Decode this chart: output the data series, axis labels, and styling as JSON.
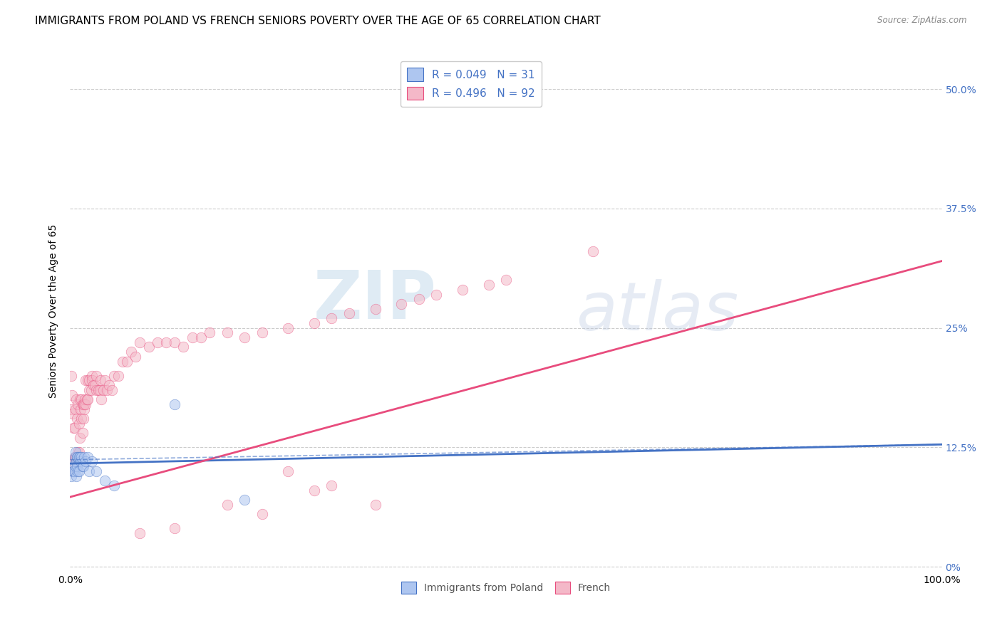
{
  "title": "IMMIGRANTS FROM POLAND VS FRENCH SENIORS POVERTY OVER THE AGE OF 65 CORRELATION CHART",
  "source": "Source: ZipAtlas.com",
  "ylabel": "Seniors Poverty Over the Age of 65",
  "watermark_zip": "ZIP",
  "watermark_atlas": "atlas",
  "xlim": [
    0,
    1
  ],
  "ylim": [
    -0.005,
    0.54
  ],
  "yticks": [
    0.0,
    0.125,
    0.25,
    0.375,
    0.5
  ],
  "ytick_labels": [
    "0%",
    "12.5%",
    "25%",
    "37.5%",
    "50.0%"
  ],
  "background_color": "#ffffff",
  "grid_color": "#cccccc",
  "poland_scatter_x": [
    0.001,
    0.002,
    0.003,
    0.004,
    0.005,
    0.005,
    0.006,
    0.006,
    0.007,
    0.007,
    0.008,
    0.008,
    0.009,
    0.009,
    0.01,
    0.01,
    0.011,
    0.012,
    0.013,
    0.014,
    0.015,
    0.016,
    0.018,
    0.02,
    0.022,
    0.025,
    0.03,
    0.04,
    0.05,
    0.12,
    0.2
  ],
  "poland_scatter_y": [
    0.095,
    0.105,
    0.1,
    0.1,
    0.115,
    0.1,
    0.105,
    0.12,
    0.11,
    0.095,
    0.105,
    0.115,
    0.115,
    0.1,
    0.115,
    0.1,
    0.115,
    0.11,
    0.115,
    0.105,
    0.105,
    0.115,
    0.11,
    0.115,
    0.1,
    0.11,
    0.1,
    0.09,
    0.085,
    0.17,
    0.07
  ],
  "french_scatter_x": [
    0.001,
    0.001,
    0.002,
    0.003,
    0.003,
    0.004,
    0.004,
    0.005,
    0.005,
    0.006,
    0.006,
    0.007,
    0.007,
    0.008,
    0.008,
    0.009,
    0.009,
    0.01,
    0.01,
    0.011,
    0.011,
    0.012,
    0.013,
    0.013,
    0.014,
    0.014,
    0.015,
    0.015,
    0.016,
    0.016,
    0.017,
    0.018,
    0.018,
    0.019,
    0.02,
    0.02,
    0.022,
    0.022,
    0.024,
    0.025,
    0.025,
    0.027,
    0.028,
    0.03,
    0.03,
    0.032,
    0.034,
    0.035,
    0.036,
    0.038,
    0.04,
    0.042,
    0.045,
    0.048,
    0.05,
    0.055,
    0.06,
    0.065,
    0.07,
    0.075,
    0.08,
    0.09,
    0.1,
    0.11,
    0.12,
    0.13,
    0.14,
    0.15,
    0.16,
    0.18,
    0.2,
    0.22,
    0.25,
    0.28,
    0.3,
    0.32,
    0.35,
    0.38,
    0.4,
    0.42,
    0.45,
    0.48,
    0.5,
    0.25,
    0.3,
    0.18,
    0.22,
    0.08,
    0.12,
    0.28,
    0.35,
    0.6
  ],
  "french_scatter_y": [
    0.2,
    0.165,
    0.18,
    0.16,
    0.11,
    0.145,
    0.1,
    0.115,
    0.145,
    0.115,
    0.165,
    0.115,
    0.175,
    0.115,
    0.155,
    0.12,
    0.17,
    0.12,
    0.15,
    0.135,
    0.175,
    0.165,
    0.155,
    0.175,
    0.14,
    0.17,
    0.155,
    0.17,
    0.165,
    0.17,
    0.175,
    0.17,
    0.195,
    0.175,
    0.175,
    0.195,
    0.185,
    0.195,
    0.185,
    0.2,
    0.195,
    0.19,
    0.19,
    0.185,
    0.2,
    0.185,
    0.185,
    0.195,
    0.175,
    0.185,
    0.195,
    0.185,
    0.19,
    0.185,
    0.2,
    0.2,
    0.215,
    0.215,
    0.225,
    0.22,
    0.235,
    0.23,
    0.235,
    0.235,
    0.235,
    0.23,
    0.24,
    0.24,
    0.245,
    0.245,
    0.24,
    0.245,
    0.25,
    0.255,
    0.26,
    0.265,
    0.27,
    0.275,
    0.28,
    0.285,
    0.29,
    0.295,
    0.3,
    0.1,
    0.085,
    0.065,
    0.055,
    0.035,
    0.04,
    0.08,
    0.065,
    0.33
  ],
  "poland_trend_x": [
    0.0,
    1.0
  ],
  "poland_trend_y": [
    0.108,
    0.128
  ],
  "french_trend_x": [
    0.0,
    1.0
  ],
  "french_trend_y": [
    0.073,
    0.32
  ],
  "poland_color": "#aec6f0",
  "polish_line_color": "#4472c4",
  "french_color": "#f4b8c8",
  "french_line_color": "#e84c7d",
  "scatter_size": 110,
  "scatter_alpha": 0.55,
  "title_fontsize": 11,
  "axis_label_fontsize": 10,
  "tick_fontsize": 10,
  "right_tick_color": "#4472c4",
  "bottom_legend_labels": [
    "Immigrants from Poland",
    "French"
  ]
}
